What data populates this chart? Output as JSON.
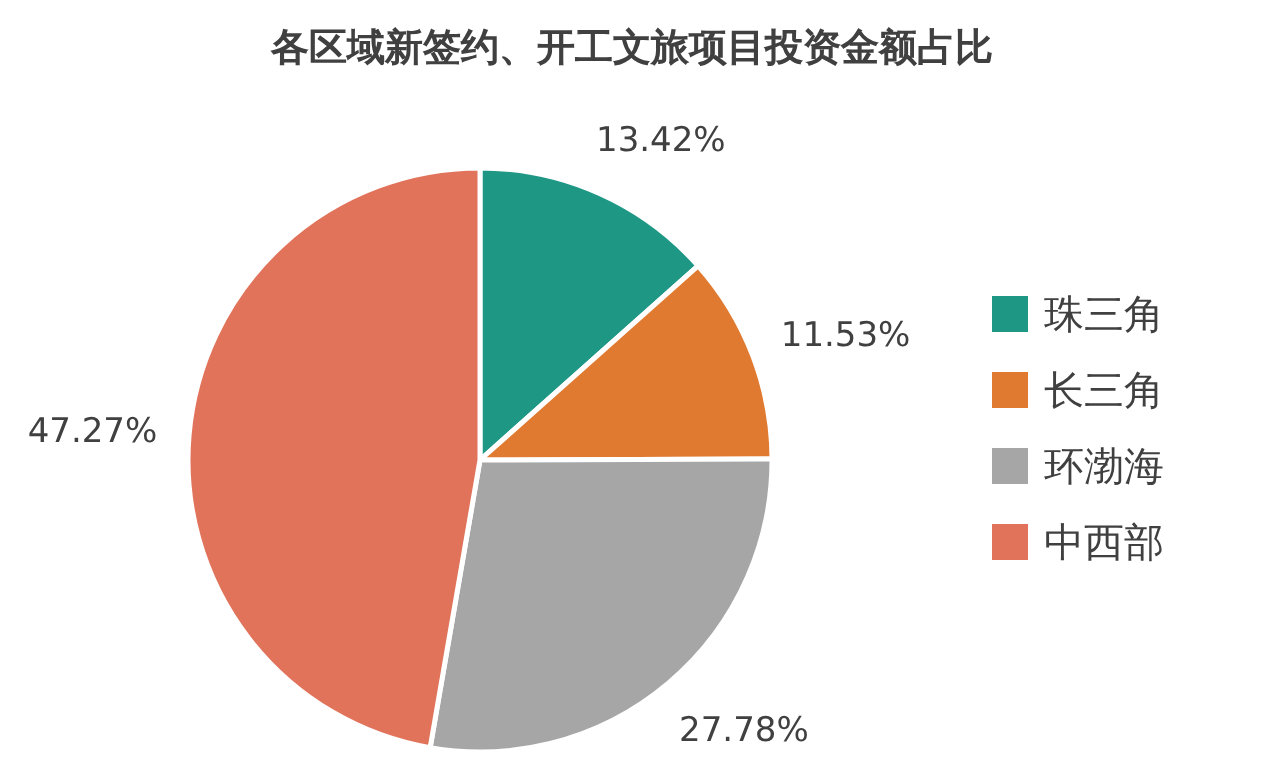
{
  "chart_data": {
    "type": "pie",
    "title": "各区域新签约、开工文旅项目投资金额占比",
    "categories": [
      "珠三角",
      "长三角",
      "环渤海",
      "中西部"
    ],
    "values": [
      13.42,
      11.53,
      27.78,
      47.27
    ],
    "colors": [
      "#1e9784",
      "#e07a30",
      "#a6a6a6",
      "#e1735b"
    ],
    "value_labels": [
      "13.42%",
      "11.53%",
      "27.78%",
      "47.27%"
    ],
    "legend": "right"
  }
}
